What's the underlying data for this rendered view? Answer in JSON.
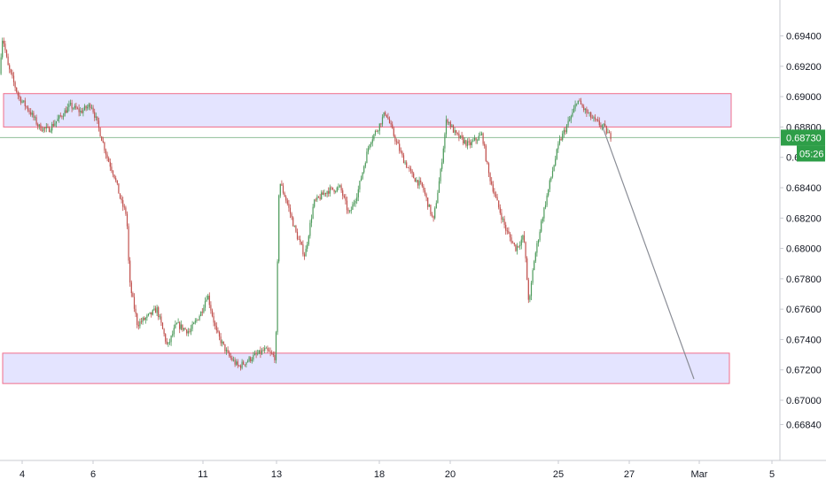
{
  "colors": {
    "up": "#4c9a5a",
    "down": "#c0504d",
    "zone_fill": "#e4e4ff",
    "zone_border": "#f26d8a",
    "projection": "#8a8d96",
    "price_line": "#8fbf98",
    "badge": "#2e9e48"
  },
  "price_badge": {
    "price": "0.68730",
    "countdown": "05:26"
  },
  "chart_data": {
    "type": "candlestick",
    "title": "",
    "xlabel": "",
    "ylabel": "",
    "ylim": [
      0.6672,
      0.6952
    ],
    "y_ticks": [
      "0.69400",
      "0.69200",
      "0.69000",
      "0.68800",
      "0.68600",
      "0.68400",
      "0.68200",
      "0.68000",
      "0.67800",
      "0.67600",
      "0.67400",
      "0.67200",
      "0.67000",
      "0.66840"
    ],
    "x_ticks": [
      "4",
      "6",
      "11",
      "13",
      "18",
      "20",
      "25",
      "27",
      "Mar",
      "5"
    ],
    "current_price": 0.6873,
    "zones": [
      {
        "name": "resistance",
        "low": 0.688,
        "high": 0.6902
      },
      {
        "name": "support",
        "low": 0.6711,
        "high": 0.6731
      }
    ],
    "projection": {
      "from": 0.688,
      "to": 0.6714
    },
    "path": [
      [
        0,
        0.6915
      ],
      [
        4,
        0.694
      ],
      [
        10,
        0.692
      ],
      [
        22,
        0.69
      ],
      [
        35,
        0.689
      ],
      [
        45,
        0.688
      ],
      [
        55,
        0.6878
      ],
      [
        68,
        0.6886
      ],
      [
        80,
        0.6894
      ],
      [
        92,
        0.689
      ],
      [
        104,
        0.6895
      ],
      [
        112,
        0.688
      ],
      [
        122,
        0.686
      ],
      [
        130,
        0.6848
      ],
      [
        138,
        0.683
      ],
      [
        144,
        0.6822
      ],
      [
        147,
        0.6778
      ],
      [
        156,
        0.675
      ],
      [
        168,
        0.6755
      ],
      [
        178,
        0.676
      ],
      [
        190,
        0.6735
      ],
      [
        200,
        0.675
      ],
      [
        215,
        0.6745
      ],
      [
        228,
        0.6758
      ],
      [
        235,
        0.677
      ],
      [
        245,
        0.6745
      ],
      [
        258,
        0.673
      ],
      [
        270,
        0.6722
      ],
      [
        285,
        0.6728
      ],
      [
        300,
        0.6733
      ],
      [
        312,
        0.6728
      ],
      [
        316,
        0.6845
      ],
      [
        325,
        0.683
      ],
      [
        335,
        0.681
      ],
      [
        345,
        0.6795
      ],
      [
        355,
        0.683
      ],
      [
        370,
        0.6838
      ],
      [
        385,
        0.684
      ],
      [
        395,
        0.6822
      ],
      [
        405,
        0.6838
      ],
      [
        418,
        0.687
      ],
      [
        428,
        0.688
      ],
      [
        436,
        0.689
      ],
      [
        445,
        0.6875
      ],
      [
        455,
        0.686
      ],
      [
        466,
        0.6848
      ],
      [
        478,
        0.684
      ],
      [
        490,
        0.6818
      ],
      [
        498,
        0.685
      ],
      [
        505,
        0.6886
      ],
      [
        515,
        0.6875
      ],
      [
        530,
        0.6868
      ],
      [
        545,
        0.6875
      ],
      [
        552,
        0.685
      ],
      [
        562,
        0.683
      ],
      [
        572,
        0.6812
      ],
      [
        583,
        0.68
      ],
      [
        592,
        0.6808
      ],
      [
        598,
        0.6762
      ],
      [
        603,
        0.679
      ],
      [
        612,
        0.6818
      ],
      [
        622,
        0.6845
      ],
      [
        632,
        0.687
      ],
      [
        640,
        0.688
      ],
      [
        648,
        0.689
      ],
      [
        652,
        0.6898
      ],
      [
        662,
        0.689
      ],
      [
        672,
        0.6884
      ],
      [
        682,
        0.688
      ],
      [
        689,
        0.6874
      ]
    ]
  }
}
